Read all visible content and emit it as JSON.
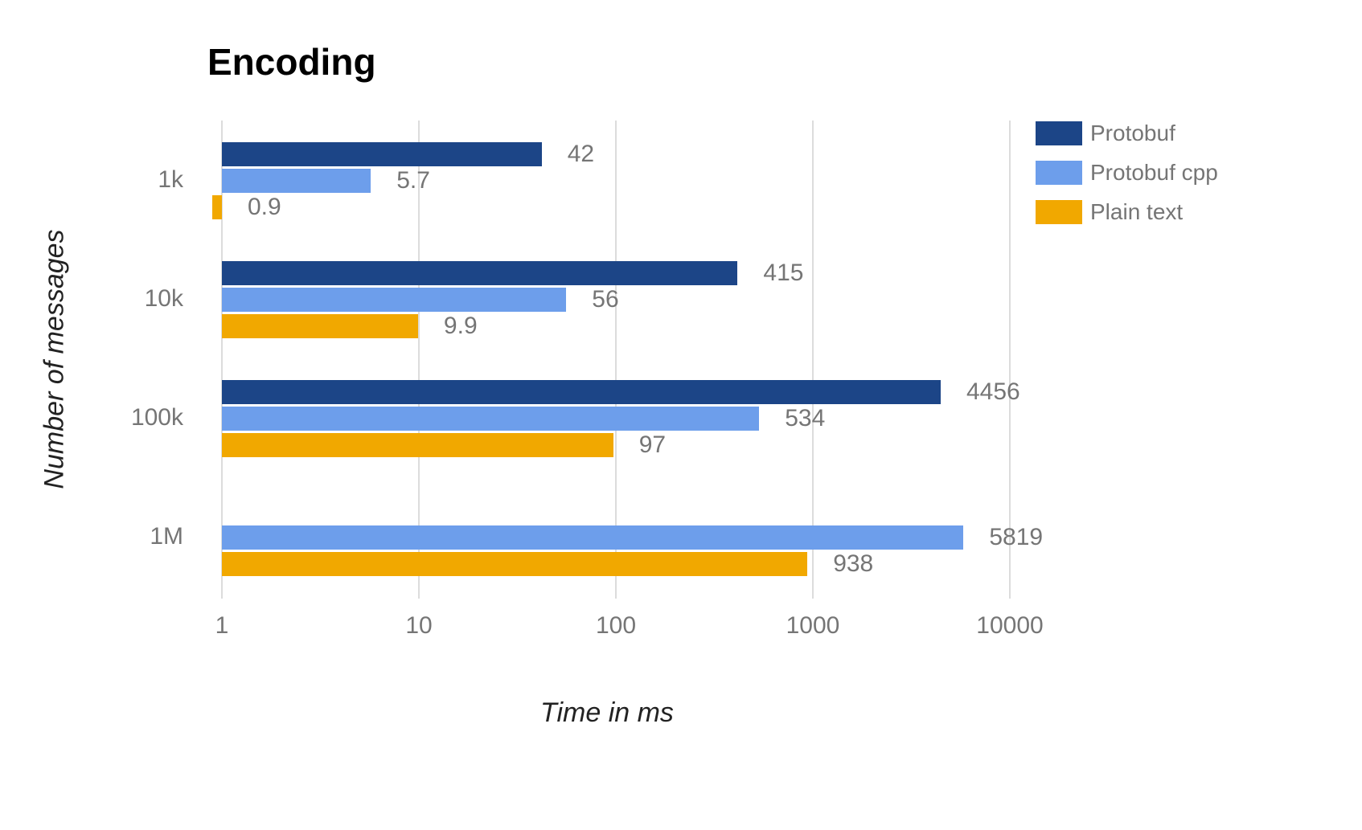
{
  "chart_data": {
    "type": "bar",
    "orientation": "horizontal",
    "title": "Encoding",
    "xlabel": "Time in ms",
    "ylabel": "Number of messages",
    "x_scale": "log",
    "xlim": [
      1,
      10000
    ],
    "x_ticks": [
      "1",
      "10",
      "100",
      "1000",
      "10000"
    ],
    "grid": true,
    "legend_position": "right",
    "categories": [
      "1k",
      "10k",
      "100k",
      "1M"
    ],
    "series": [
      {
        "name": "Protobuf",
        "color": "#1c4587",
        "values": [
          42,
          415,
          4456,
          null
        ],
        "labels": [
          "42",
          "415",
          "4456",
          ""
        ]
      },
      {
        "name": "Protobuf cpp",
        "color": "#6d9eeb",
        "values": [
          5.7,
          56,
          534,
          5819
        ],
        "labels": [
          "5.7",
          "56",
          "534",
          "5819"
        ]
      },
      {
        "name": "Plain text",
        "color": "#f1a800",
        "values": [
          0.9,
          9.9,
          97,
          938
        ],
        "labels": [
          "0.9",
          "9.9",
          "97",
          "938"
        ]
      }
    ]
  }
}
